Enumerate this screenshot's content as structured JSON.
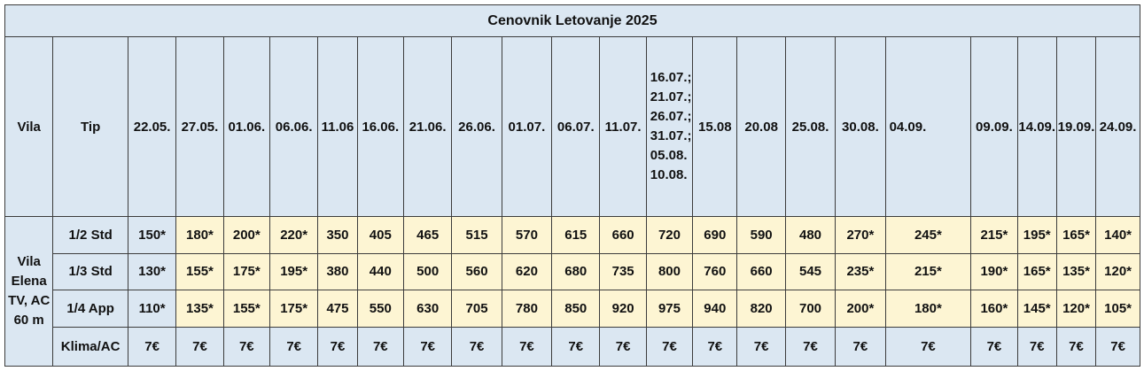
{
  "title": "Cenovnik Letovanje 2025",
  "headers": {
    "vila": "Vila",
    "tip": "Tip",
    "dates": [
      "22.05.",
      "27.05.",
      "01.06.",
      "06.06.",
      "11.06",
      "16.06.",
      "21.06.",
      "26.06.",
      "01.07.",
      "06.07.",
      "11.07.",
      "16.07.; 21.07.; 26.07.; 31.07.; 05.08. 10.08.",
      "15.08",
      "20.08",
      "25.08.",
      "30.08.",
      "04.09.",
      "09.09.",
      "14.09.",
      "19.09.",
      "24.09."
    ]
  },
  "vila_name": "Vila Elena TV, AC 60 m",
  "rows": [
    {
      "tip": "1/2 Std",
      "prices": [
        "150*",
        "180*",
        "200*",
        "220*",
        "350",
        "405",
        "465",
        "515",
        "570",
        "615",
        "660",
        "720",
        "690",
        "590",
        "480",
        "270*",
        "245*",
        "215*",
        "195*",
        "165*",
        "140*"
      ]
    },
    {
      "tip": "1/3 Std",
      "prices": [
        "130*",
        "155*",
        "175*",
        "195*",
        "380",
        "440",
        "500",
        "560",
        "620",
        "680",
        "735",
        "800",
        "760",
        "660",
        "545",
        "235*",
        "215*",
        "190*",
        "165*",
        "135*",
        "120*"
      ]
    },
    {
      "tip": "1/4 App",
      "prices": [
        "110*",
        "135*",
        "155*",
        "175*",
        "475",
        "550",
        "630",
        "705",
        "780",
        "850",
        "920",
        "975",
        "940",
        "820",
        "700",
        "200*",
        "180*",
        "160*",
        "145*",
        "120*",
        "105*"
      ]
    },
    {
      "tip": "Klima/AC",
      "prices": [
        "7€",
        "7€",
        "7€",
        "7€",
        "7€",
        "7€",
        "7€",
        "7€",
        "7€",
        "7€",
        "7€",
        "7€",
        "7€",
        "7€",
        "7€",
        "7€",
        "7€",
        "7€",
        "7€",
        "7€",
        "7€"
      ]
    }
  ],
  "colors": {
    "header_bg": "#dbe7f2",
    "season_bg": "#fdf5d3",
    "border": "#3c3c3c"
  }
}
